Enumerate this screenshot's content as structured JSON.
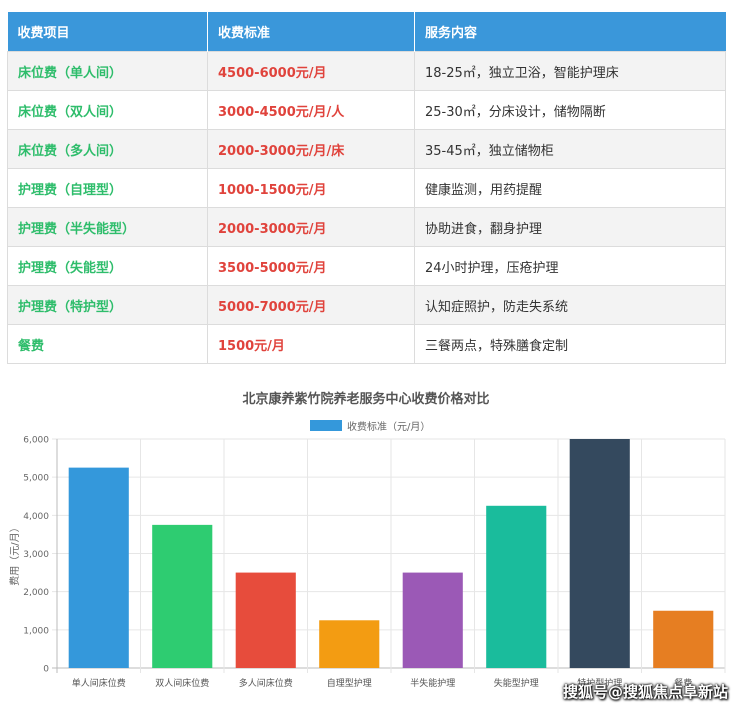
{
  "table": {
    "headers": [
      "收费项目",
      "收费标准",
      "服务内容"
    ],
    "rows": [
      {
        "item": "床位费（单人间）",
        "price": "4500-6000元/月",
        "desc": "18-25㎡，独立卫浴，智能护理床"
      },
      {
        "item": "床位费（双人间）",
        "price": "3000-4500元/月/人",
        "desc": "25-30㎡，分床设计，储物隔断"
      },
      {
        "item": "床位费（多人间）",
        "price": "2000-3000元/月/床",
        "desc": "35-45㎡，独立储物柜"
      },
      {
        "item": "护理费（自理型）",
        "price": "1000-1500元/月",
        "desc": "健康监测，用药提醒"
      },
      {
        "item": "护理费（半失能型）",
        "price": "2000-3000元/月",
        "desc": "协助进食，翻身护理"
      },
      {
        "item": "护理费（失能型）",
        "price": "3500-5000元/月",
        "desc": "24小时护理，压疮护理"
      },
      {
        "item": "护理费（特护型）",
        "price": "5000-7000元/月",
        "desc": "认知症照护，防走失系统"
      },
      {
        "item": "餐费",
        "price": "1500元/月",
        "desc": "三餐两点，特殊膳食定制"
      }
    ]
  },
  "chart_data": {
    "type": "bar",
    "title": "北京康养紫竹院养老服务中心收费价格对比",
    "legend": {
      "label": "收费标准（元/月）",
      "placement": "top-center"
    },
    "ylabel": "费用（元/月）",
    "xlabel": "",
    "ylim": [
      0,
      6000
    ],
    "yticks": [
      0,
      1000,
      2000,
      3000,
      4000,
      5000,
      6000
    ],
    "ytick_labels": [
      "0",
      "1,000",
      "2,000",
      "3,000",
      "4,000",
      "5,000",
      "6,000"
    ],
    "grid": true,
    "categories": [
      "单人间床位费",
      "双人间床位费",
      "多人间床位费",
      "自理型护理",
      "半失能护理",
      "失能型护理",
      "特护型护理",
      "餐费"
    ],
    "series": [
      {
        "name": "收费标准（元/月）",
        "values": [
          5250,
          3750,
          2500,
          1250,
          2500,
          4250,
          6000,
          1500
        ],
        "colors": [
          "#3498db",
          "#2ecc71",
          "#e74c3c",
          "#f39c12",
          "#9b59b6",
          "#1abc9c",
          "#34495e",
          "#e67e22"
        ]
      }
    ],
    "legend_color": "#3498db"
  },
  "watermark": "搜狐号@搜狐焦点阜新站"
}
